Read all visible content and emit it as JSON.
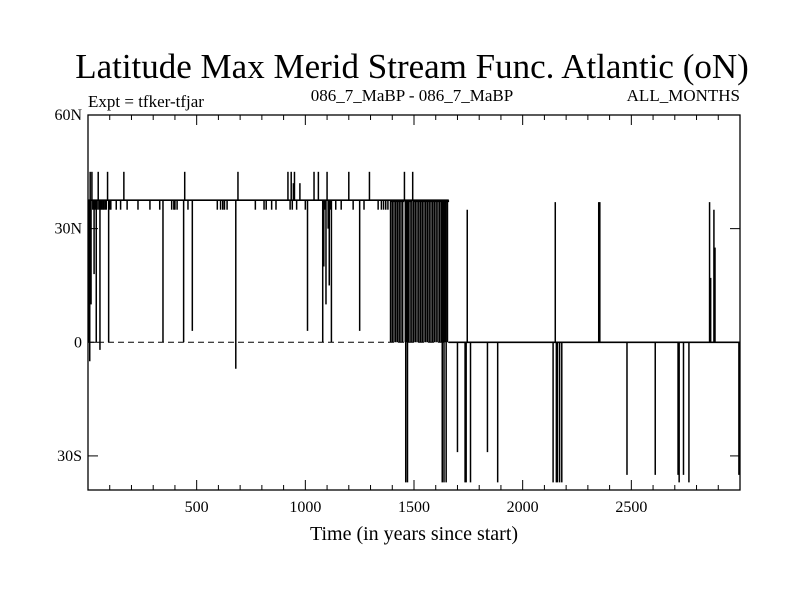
{
  "chart_data": {
    "type": "line",
    "title": "Latitude Max Merid Stream Func. Atlantic (oN)",
    "subtitle_left": "Expt = tfker-tfjar",
    "subtitle_center": "086_7_MaBP - 086_7_MaBP",
    "subtitle_right": "ALL_MONTHS",
    "xlabel": "Time (in years since start)",
    "ylabel": "",
    "xlim": [
      0,
      3000
    ],
    "ylim": [
      -39,
      60
    ],
    "x_ticks": [
      500,
      1000,
      1500,
      2000,
      2500
    ],
    "x_tick_labels": [
      "500",
      "1000",
      "1500",
      "2000",
      "2500"
    ],
    "y_ticks": [
      60,
      30,
      0,
      -30
    ],
    "y_tick_labels": [
      "60N",
      "30N",
      "0",
      "30S"
    ],
    "zero_line": true,
    "zero_line_style": "dashed",
    "grid": false,
    "baseline_epochs": [
      {
        "from": 0,
        "to": 1385,
        "value": 37.5
      },
      {
        "from": 1385,
        "to": 1660,
        "value": 37.5
      },
      {
        "from": 1660,
        "to": 3000,
        "value": 0
      }
    ],
    "spikes": [
      {
        "x": 5,
        "y": 0
      },
      {
        "x": 8,
        "y": -5
      },
      {
        "x": 10,
        "y": 45
      },
      {
        "x": 14,
        "y": 10
      },
      {
        "x": 18,
        "y": 45
      },
      {
        "x": 22,
        "y": 35
      },
      {
        "x": 28,
        "y": 18
      },
      {
        "x": 33,
        "y": 35
      },
      {
        "x": 38,
        "y": 0
      },
      {
        "x": 42,
        "y": 35
      },
      {
        "x": 47,
        "y": 45
      },
      {
        "x": 50,
        "y": 35
      },
      {
        "x": 55,
        "y": -2
      },
      {
        "x": 58,
        "y": 35
      },
      {
        "x": 62,
        "y": 35
      },
      {
        "x": 68,
        "y": 35
      },
      {
        "x": 72,
        "y": 35
      },
      {
        "x": 78,
        "y": 35
      },
      {
        "x": 84,
        "y": 35
      },
      {
        "x": 90,
        "y": 45
      },
      {
        "x": 95,
        "y": 0
      },
      {
        "x": 100,
        "y": 35
      },
      {
        "x": 105,
        "y": 35
      },
      {
        "x": 130,
        "y": 35
      },
      {
        "x": 150,
        "y": 35
      },
      {
        "x": 165,
        "y": 45
      },
      {
        "x": 180,
        "y": 35
      },
      {
        "x": 230,
        "y": 35
      },
      {
        "x": 285,
        "y": 35
      },
      {
        "x": 330,
        "y": 35
      },
      {
        "x": 345,
        "y": 0
      },
      {
        "x": 385,
        "y": 35
      },
      {
        "x": 395,
        "y": 35
      },
      {
        "x": 400,
        "y": 35
      },
      {
        "x": 410,
        "y": 35
      },
      {
        "x": 440,
        "y": 0
      },
      {
        "x": 445,
        "y": 45
      },
      {
        "x": 460,
        "y": 35
      },
      {
        "x": 480,
        "y": 3
      },
      {
        "x": 595,
        "y": 35
      },
      {
        "x": 610,
        "y": 35
      },
      {
        "x": 620,
        "y": 35
      },
      {
        "x": 628,
        "y": 35
      },
      {
        "x": 640,
        "y": 35
      },
      {
        "x": 680,
        "y": -7
      },
      {
        "x": 690,
        "y": 45
      },
      {
        "x": 770,
        "y": 35
      },
      {
        "x": 810,
        "y": 35
      },
      {
        "x": 820,
        "y": 35
      },
      {
        "x": 845,
        "y": 35
      },
      {
        "x": 865,
        "y": 35
      },
      {
        "x": 920,
        "y": 45
      },
      {
        "x": 930,
        "y": 35
      },
      {
        "x": 935,
        "y": 45
      },
      {
        "x": 940,
        "y": 35
      },
      {
        "x": 945,
        "y": 42
      },
      {
        "x": 950,
        "y": 45
      },
      {
        "x": 960,
        "y": 35
      },
      {
        "x": 975,
        "y": 42
      },
      {
        "x": 1000,
        "y": 35
      },
      {
        "x": 1010,
        "y": 3
      },
      {
        "x": 1040,
        "y": 45
      },
      {
        "x": 1060,
        "y": 45
      },
      {
        "x": 1080,
        "y": 0
      },
      {
        "x": 1085,
        "y": 20
      },
      {
        "x": 1090,
        "y": 35
      },
      {
        "x": 1095,
        "y": 10
      },
      {
        "x": 1100,
        "y": 45
      },
      {
        "x": 1105,
        "y": 30
      },
      {
        "x": 1110,
        "y": 15
      },
      {
        "x": 1115,
        "y": 35
      },
      {
        "x": 1120,
        "y": 0
      },
      {
        "x": 1140,
        "y": 35
      },
      {
        "x": 1165,
        "y": 35
      },
      {
        "x": 1200,
        "y": 45
      },
      {
        "x": 1220,
        "y": 35
      },
      {
        "x": 1250,
        "y": 3
      },
      {
        "x": 1270,
        "y": 35
      },
      {
        "x": 1295,
        "y": 45
      },
      {
        "x": 1335,
        "y": 35
      },
      {
        "x": 1350,
        "y": 35
      },
      {
        "x": 1360,
        "y": 35
      },
      {
        "x": 1370,
        "y": 35
      },
      {
        "x": 1380,
        "y": 35
      },
      {
        "x": 1392,
        "y": 0
      },
      {
        "x": 1396,
        "y": 37
      },
      {
        "x": 1400,
        "y": 0
      },
      {
        "x": 1404,
        "y": 37
      },
      {
        "x": 1408,
        "y": 0
      },
      {
        "x": 1412,
        "y": 37
      },
      {
        "x": 1416,
        "y": 0
      },
      {
        "x": 1420,
        "y": 37
      },
      {
        "x": 1424,
        "y": 0
      },
      {
        "x": 1428,
        "y": 37
      },
      {
        "x": 1432,
        "y": 0
      },
      {
        "x": 1436,
        "y": 37
      },
      {
        "x": 1440,
        "y": 0
      },
      {
        "x": 1444,
        "y": 37
      },
      {
        "x": 1448,
        "y": 0
      },
      {
        "x": 1452,
        "y": 37
      },
      {
        "x": 1456,
        "y": 45
      },
      {
        "x": 1460,
        "y": 0
      },
      {
        "x": 1462,
        "y": -37
      },
      {
        "x": 1466,
        "y": 0
      },
      {
        "x": 1470,
        "y": -37
      },
      {
        "x": 1474,
        "y": 0
      },
      {
        "x": 1478,
        "y": 37
      },
      {
        "x": 1482,
        "y": 0
      },
      {
        "x": 1486,
        "y": 37
      },
      {
        "x": 1490,
        "y": 0
      },
      {
        "x": 1494,
        "y": 45
      },
      {
        "x": 1498,
        "y": 0
      },
      {
        "x": 1502,
        "y": 37
      },
      {
        "x": 1506,
        "y": 0
      },
      {
        "x": 1510,
        "y": 37
      },
      {
        "x": 1514,
        "y": 0
      },
      {
        "x": 1518,
        "y": 37
      },
      {
        "x": 1522,
        "y": 0
      },
      {
        "x": 1526,
        "y": 37
      },
      {
        "x": 1530,
        "y": 0
      },
      {
        "x": 1534,
        "y": 37
      },
      {
        "x": 1538,
        "y": 0
      },
      {
        "x": 1542,
        "y": 37
      },
      {
        "x": 1546,
        "y": 0
      },
      {
        "x": 1550,
        "y": 37
      },
      {
        "x": 1554,
        "y": 0
      },
      {
        "x": 1558,
        "y": 37
      },
      {
        "x": 1562,
        "y": 0
      },
      {
        "x": 1566,
        "y": 37
      },
      {
        "x": 1570,
        "y": 0
      },
      {
        "x": 1574,
        "y": 37
      },
      {
        "x": 1578,
        "y": 0
      },
      {
        "x": 1582,
        "y": 37
      },
      {
        "x": 1586,
        "y": 0
      },
      {
        "x": 1590,
        "y": 37
      },
      {
        "x": 1594,
        "y": 0
      },
      {
        "x": 1598,
        "y": 37
      },
      {
        "x": 1602,
        "y": 0
      },
      {
        "x": 1606,
        "y": 37
      },
      {
        "x": 1610,
        "y": 0
      },
      {
        "x": 1614,
        "y": 37
      },
      {
        "x": 1618,
        "y": 0
      },
      {
        "x": 1622,
        "y": 37
      },
      {
        "x": 1626,
        "y": 0
      },
      {
        "x": 1630,
        "y": -37
      },
      {
        "x": 1634,
        "y": 0
      },
      {
        "x": 1638,
        "y": -37
      },
      {
        "x": 1640,
        "y": 0
      },
      {
        "x": 1642,
        "y": 37
      },
      {
        "x": 1645,
        "y": 0
      },
      {
        "x": 1648,
        "y": -37
      },
      {
        "x": 1650,
        "y": 37
      },
      {
        "x": 1654,
        "y": 0
      },
      {
        "x": 1658,
        "y": 37
      },
      {
        "x": 1700,
        "y": -29
      },
      {
        "x": 1735,
        "y": -37
      },
      {
        "x": 1740,
        "y": -37
      },
      {
        "x": 1745,
        "y": 35
      },
      {
        "x": 1760,
        "y": -37
      },
      {
        "x": 1838,
        "y": -29
      },
      {
        "x": 1885,
        "y": -37
      },
      {
        "x": 2140,
        "y": -37
      },
      {
        "x": 2150,
        "y": 37
      },
      {
        "x": 2155,
        "y": -37
      },
      {
        "x": 2160,
        "y": -37
      },
      {
        "x": 2170,
        "y": -37
      },
      {
        "x": 2180,
        "y": -37
      },
      {
        "x": 2350,
        "y": 37
      },
      {
        "x": 2355,
        "y": 37
      },
      {
        "x": 2480,
        "y": -35
      },
      {
        "x": 2610,
        "y": -35
      },
      {
        "x": 2715,
        "y": -35
      },
      {
        "x": 2720,
        "y": -37
      },
      {
        "x": 2740,
        "y": -35
      },
      {
        "x": 2765,
        "y": -37
      },
      {
        "x": 2860,
        "y": 37
      },
      {
        "x": 2865,
        "y": 17
      },
      {
        "x": 2880,
        "y": 35
      },
      {
        "x": 2885,
        "y": 25
      },
      {
        "x": 2995,
        "y": -35
      }
    ]
  }
}
